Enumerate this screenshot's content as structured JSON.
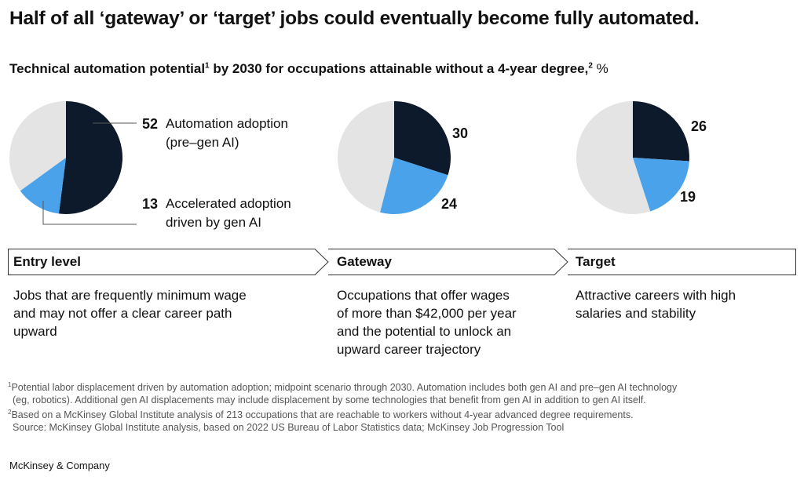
{
  "headline": "Half of all ‘gateway’ or ‘target’ jobs could eventually become fully automated.",
  "subtitle": {
    "text": "Technical automation potential",
    "sup1": "1",
    "text2": " by 2030 for occupations attainable without a 4-year degree,",
    "sup2": "2",
    "unit": " %"
  },
  "colors": {
    "dark": "#0d1a2b",
    "blue": "#4aa3ea",
    "grey": "#e4e4e4",
    "line": "#555555"
  },
  "legend": {
    "adoption_value": "52",
    "adoption_label_line1": "Automation adoption",
    "adoption_label_line2": "(pre–gen AI)",
    "accelerated_value": "13",
    "accelerated_label_line1": "Accelerated adoption",
    "accelerated_label_line2": "driven by gen AI"
  },
  "chart_data": [
    {
      "type": "pie",
      "category": "Entry level",
      "series": [
        {
          "name": "Automation adoption (pre–gen AI)",
          "value": 52
        },
        {
          "name": "Accelerated adoption driven by gen AI",
          "value": 13
        }
      ]
    },
    {
      "type": "pie",
      "category": "Gateway",
      "series": [
        {
          "name": "Automation adoption (pre–gen AI)",
          "value": 30
        },
        {
          "name": "Accelerated adoption driven by gen AI",
          "value": 24
        }
      ]
    },
    {
      "type": "pie",
      "category": "Target",
      "series": [
        {
          "name": "Automation adoption (pre–gen AI)",
          "value": 26
        },
        {
          "name": "Accelerated adoption driven by gen AI",
          "value": 19
        }
      ]
    }
  ],
  "steps": [
    {
      "title": "Entry level",
      "desc_lines": [
        "Jobs that are frequently minimum wage",
        "and may not offer a clear career path",
        "upward"
      ]
    },
    {
      "title": "Gateway",
      "desc_lines": [
        "Occupations that offer wages",
        "of more than $42,000 per year",
        "and the potential to unlock an",
        "upward career trajectory"
      ]
    },
    {
      "title": "Target",
      "desc_lines": [
        "Attractive careers with high",
        "salaries and stability"
      ]
    }
  ],
  "footnotes": {
    "fn1_mark": "1",
    "fn1_line1": "Potential labor displacement driven by automation adoption; midpoint scenario through 2030. Automation includes both gen AI and pre–gen AI technology",
    "fn1_line2": "(eg, robotics). Additional gen AI displacements may include displacement by some technologies that benefit from gen AI in addition to gen AI itself.",
    "fn2_mark": "2",
    "fn2_line1": "Based on a McKinsey Global Institute analysis of 213 occupations that are reachable to workers without 4-year advanced degree requirements.",
    "source": "Source: McKinsey Global Institute analysis, based on 2022 US Bureau of Labor Statistics data; McKinsey Job Progression Tool"
  },
  "brand": "McKinsey & Company"
}
